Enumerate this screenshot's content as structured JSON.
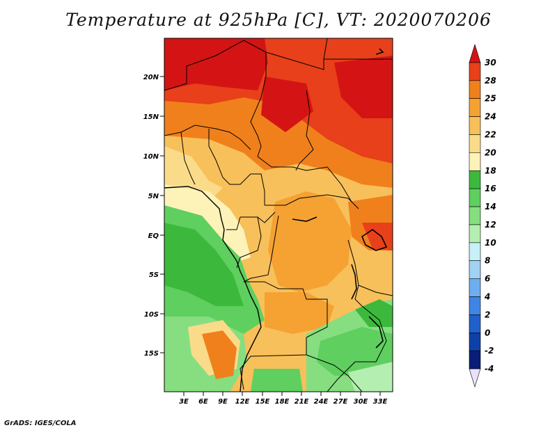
{
  "title": "Temperature at 925hPa [C], VT: 2020070206",
  "footer": "GrADS: IGES/COLA",
  "map": {
    "lat_labels": [
      "20N",
      "15N",
      "10N",
      "5N",
      "EQ",
      "5S",
      "10S",
      "15S"
    ],
    "lon_labels": [
      "3E",
      "6E",
      "9E",
      "12E",
      "15E",
      "18E",
      "21E",
      "24E",
      "27E",
      "30E",
      "33E"
    ]
  },
  "colorbar": {
    "levels": [
      "30",
      "28",
      "25",
      "24",
      "22",
      "20",
      "18",
      "16",
      "14",
      "12",
      "10",
      "8",
      "6",
      "4",
      "2",
      "0",
      "-2",
      "-4"
    ],
    "colors": [
      "#d41414",
      "#e8401a",
      "#f0801c",
      "#f5a233",
      "#f7c05a",
      "#fadb8a",
      "#fdf2b8",
      "#3cb93c",
      "#5fcf5f",
      "#86de80",
      "#b4eeb0",
      "#c8f0f8",
      "#a0d2f5",
      "#6eaef0",
      "#3f86e4",
      "#1f60cc",
      "#0d40a8",
      "#0a1e78",
      "#e8e2fa"
    ]
  }
}
